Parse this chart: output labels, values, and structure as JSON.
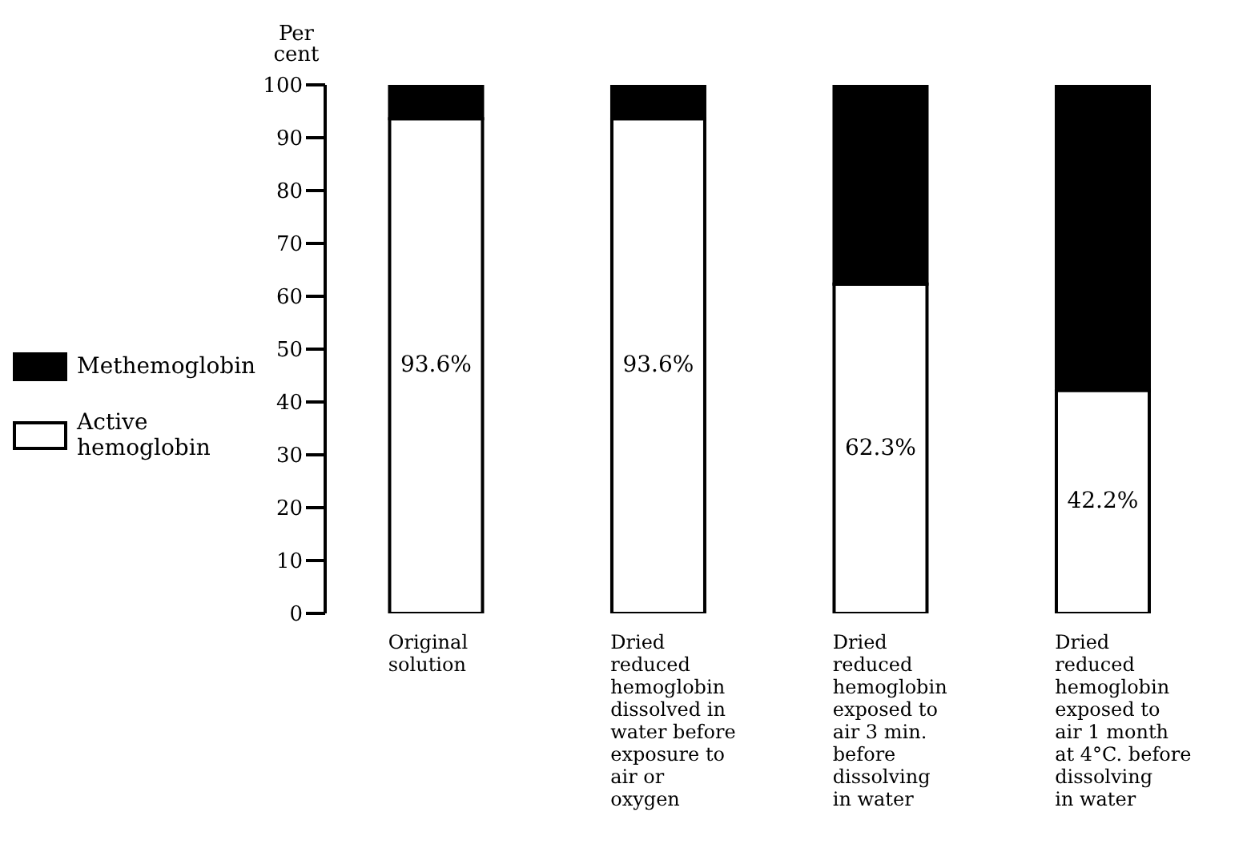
{
  "chart_data": {
    "type": "bar",
    "stacked": true,
    "ylabel": "Per cent",
    "categories": [
      "Original\nsolution",
      "Dried\nreduced\nhemoglobin\ndissolved in\nwater before\nexposure to\nair or\noxygen",
      "Dried\nreduced\nhemoglobin\nexposed to\nair 3 min.\nbefore\ndissolving\nin water",
      "Dried\nreduced\nhemoglobin\nexposed to\nair 1 month\nat 4°C. before\ndissolving\nin water"
    ],
    "series": [
      {
        "name": "Active hemoglobin",
        "color": "#ffffff",
        "values": [
          93.6,
          93.6,
          62.3,
          42.2
        ],
        "value_labels": [
          "93.6%",
          "93.6%",
          "62.3%",
          "42.2%"
        ]
      },
      {
        "name": "Methemoglobin",
        "color": "#000000",
        "values": [
          6.4,
          6.4,
          37.7,
          57.8
        ]
      }
    ],
    "ylim": [
      0,
      100
    ],
    "yticks": [
      0,
      10,
      20,
      30,
      40,
      50,
      60,
      70,
      80,
      90,
      100
    ],
    "grid": false,
    "legend": "left"
  }
}
